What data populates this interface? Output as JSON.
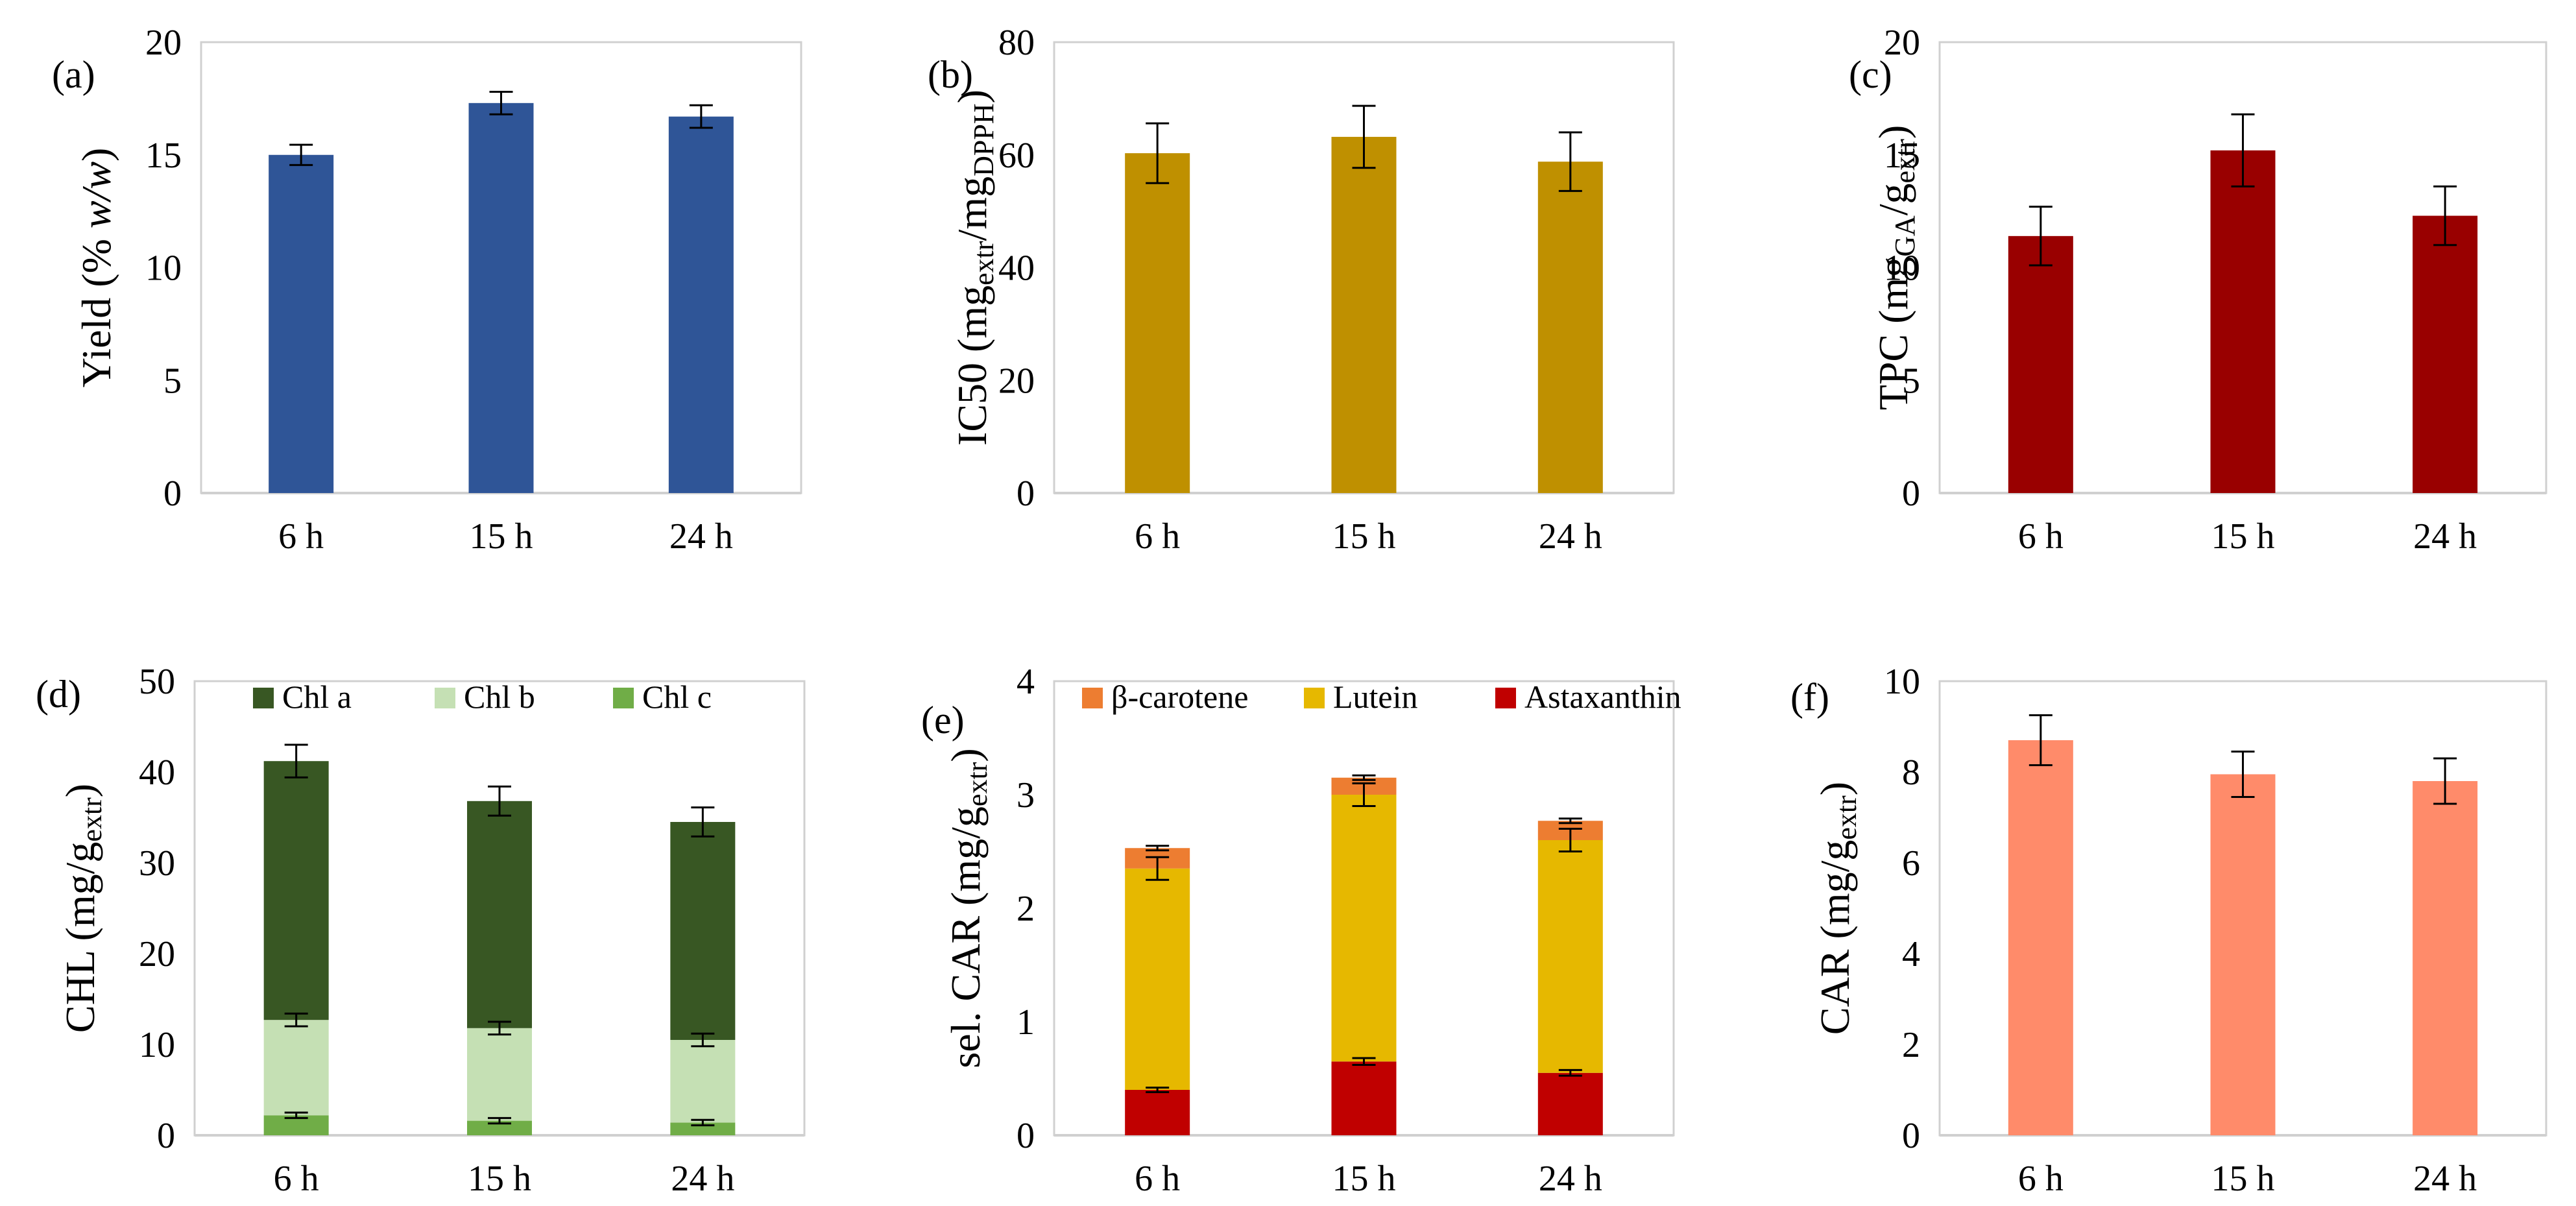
{
  "chart_data": [
    {
      "id": "a",
      "type": "bar",
      "panel_label": "(a)",
      "categories": [
        "6 h",
        "15 h",
        "24 h"
      ],
      "ylabel": [
        {
          "t": "Yield (% "
        },
        {
          "t": "w/w",
          "s": "italic"
        },
        {
          "t": ")"
        }
      ],
      "ylim": [
        0,
        20
      ],
      "yticks": [
        0,
        5,
        10,
        15,
        20
      ],
      "series": [
        {
          "name": "Yield",
          "color": "#2F5597",
          "values": [
            15.0,
            17.3,
            16.7
          ],
          "errors": [
            0.45,
            0.5,
            0.5
          ]
        }
      ]
    },
    {
      "id": "b",
      "type": "bar",
      "panel_label": "(b)",
      "categories": [
        "6 h",
        "15 h",
        "24 h"
      ],
      "ylabel": [
        {
          "t": "IC50 (mg"
        },
        {
          "t": "extr",
          "s": "sub"
        },
        {
          "t": "/mg"
        },
        {
          "t": "DPPH",
          "s": "sub"
        },
        {
          "t": ")"
        }
      ],
      "ylim": [
        0,
        80
      ],
      "yticks": [
        0,
        20,
        40,
        60,
        80
      ],
      "series": [
        {
          "name": "IC50",
          "color": "#BF9000",
          "values": [
            60.3,
            63.2,
            58.8
          ],
          "errors": [
            5.3,
            5.5,
            5.2
          ]
        }
      ]
    },
    {
      "id": "c",
      "type": "bar",
      "panel_label": "(c)",
      "categories": [
        "6 h",
        "15 h",
        "24 h"
      ],
      "ylabel": [
        {
          "t": "TPC (mg"
        },
        {
          "t": "GA",
          "s": "sub"
        },
        {
          "t": "/g"
        },
        {
          "t": "extr",
          "s": "sub"
        },
        {
          "t": ")"
        }
      ],
      "ylim": [
        0,
        20
      ],
      "yticks": [
        0,
        5,
        10,
        15,
        20
      ],
      "series": [
        {
          "name": "TPC",
          "color": "#990000",
          "values": [
            11.4,
            15.2,
            12.3
          ],
          "errors": [
            1.3,
            1.6,
            1.3
          ]
        }
      ]
    },
    {
      "id": "d",
      "type": "bar",
      "stacked": true,
      "panel_label": "(d)",
      "categories": [
        "6 h",
        "15 h",
        "24 h"
      ],
      "ylabel": [
        {
          "t": "CHL (mg/g"
        },
        {
          "t": "extr",
          "s": "sub"
        },
        {
          "t": ")"
        }
      ],
      "ylim": [
        0,
        50
      ],
      "yticks": [
        0,
        10,
        20,
        30,
        40,
        50
      ],
      "legend_position": "top",
      "series": [
        {
          "name": "Chl c",
          "color": "#70AD47",
          "values": [
            2.2,
            1.6,
            1.4
          ],
          "errors": [
            0.3,
            0.3,
            0.3
          ]
        },
        {
          "name": "Chl b",
          "color": "#C5E0B4",
          "values": [
            10.5,
            10.2,
            9.1
          ],
          "errors": [
            0.7,
            0.7,
            0.7
          ]
        },
        {
          "name": "Chl a",
          "color": "#385723",
          "values": [
            28.5,
            25.0,
            24.0
          ],
          "errors": [
            1.8,
            1.6,
            1.6
          ]
        }
      ],
      "legend_order": [
        "Chl a",
        "Chl b",
        "Chl c"
      ]
    },
    {
      "id": "e",
      "type": "bar",
      "stacked": true,
      "panel_label": "(e)",
      "categories": [
        "6 h",
        "15 h",
        "24 h"
      ],
      "ylabel": [
        {
          "t": "sel. CAR (mg/g"
        },
        {
          "t": "extr",
          "s": "sub"
        },
        {
          "t": ")"
        }
      ],
      "ylim": [
        0,
        4
      ],
      "yticks": [
        0,
        1,
        2,
        3,
        4
      ],
      "legend_position": "top",
      "series": [
        {
          "name": "Astaxanthin",
          "color": "#C00000",
          "values": [
            0.4,
            0.65,
            0.55
          ],
          "errors": [
            0.02,
            0.03,
            0.025
          ]
        },
        {
          "name": "Lutein",
          "color": "#E6B800",
          "values": [
            1.95,
            2.35,
            2.05
          ],
          "errors": [
            0.1,
            0.1,
            0.1
          ]
        },
        {
          "name": "β-carotene",
          "color": "#ED7D31",
          "values": [
            0.18,
            0.15,
            0.17
          ],
          "errors": [
            0.02,
            0.02,
            0.02
          ]
        }
      ],
      "legend_order": [
        "β-carotene",
        "Lutein",
        "Astaxanthin"
      ]
    },
    {
      "id": "f",
      "type": "bar",
      "panel_label": "(f)",
      "categories": [
        "6 h",
        "15 h",
        "24 h"
      ],
      "ylabel": [
        {
          "t": "CAR (mg/g"
        },
        {
          "t": "extr",
          "s": "sub"
        },
        {
          "t": ")"
        }
      ],
      "ylim": [
        0,
        10
      ],
      "yticks": [
        0,
        2,
        4,
        6,
        8,
        10
      ],
      "series": [
        {
          "name": "CAR",
          "color": "#FF8B6A",
          "values": [
            8.7,
            7.95,
            7.8
          ],
          "errors": [
            0.55,
            0.5,
            0.5
          ]
        }
      ]
    }
  ]
}
